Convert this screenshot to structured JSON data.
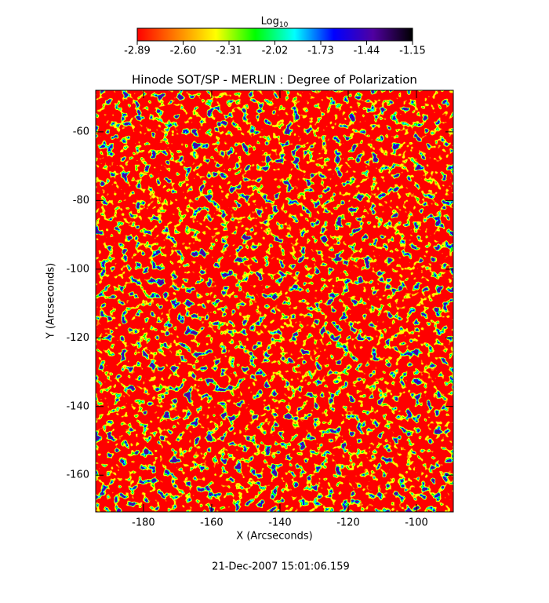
{
  "chart_data": {
    "type": "heatmap",
    "title": "Hinode SOT/SP - MERLIN : Degree of Polarization",
    "x_label": "X (Arcseconds)",
    "y_label": "Y (Arcseconds)",
    "xlim": [
      -194,
      -89.2
    ],
    "xticks": [
      -180,
      -160,
      -140,
      -120,
      -100
    ],
    "ylim": [
      -170.7,
      -47.9
    ],
    "yticks": [
      -60,
      -80,
      -100,
      -120,
      -140,
      -160
    ],
    "colorbar": {
      "title": "Log",
      "title_subscript": "10",
      "clim": [
        -2.89,
        -1.15
      ],
      "ticks": [
        -2.89,
        {
          "value": -2.6,
          "label": "-2.60"
        },
        -2.31,
        -2.02,
        -1.73,
        -1.44,
        -1.15
      ],
      "colormap": [
        "#ff0000",
        "#ff8000",
        "#ffff00",
        "#00ff00",
        "#00ffff",
        "#0000ff",
        "#5000a0",
        "#000000"
      ]
    },
    "footer": "21-Dec-2007 15:01:06.159"
  }
}
